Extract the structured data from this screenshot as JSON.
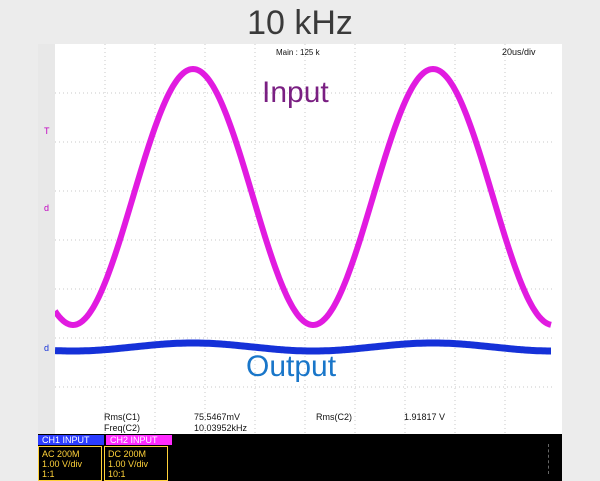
{
  "title": "10 kHz",
  "top": {
    "main_info": "Main : 125 k",
    "timebase": "20us/div"
  },
  "labels": {
    "input": "Input",
    "output": "Output"
  },
  "measurements": {
    "rms_c1_label": "Rms(C1)",
    "rms_c1_value": "75.5467mV",
    "freq_c2_label": "Freq(C2)",
    "freq_c2_value": "10.03952kHz",
    "rms_c2_label": "Rms(C2)",
    "rms_c2_value": "1.91817 V"
  },
  "channels": {
    "ch1": {
      "tab": "CH1 INPUT",
      "coupling": "AC 200M",
      "scale": "1.00 V/div",
      "probe": "1:1"
    },
    "ch2": {
      "tab": "CH2 INPUT",
      "coupling": "DC 200M",
      "scale": "1.00 V/div",
      "probe": "10:1"
    }
  },
  "colors": {
    "input_trace": "#e11be0",
    "output_trace": "#1531d8",
    "ch1": "#2b3cff",
    "ch2": "#ff2bff"
  }
}
